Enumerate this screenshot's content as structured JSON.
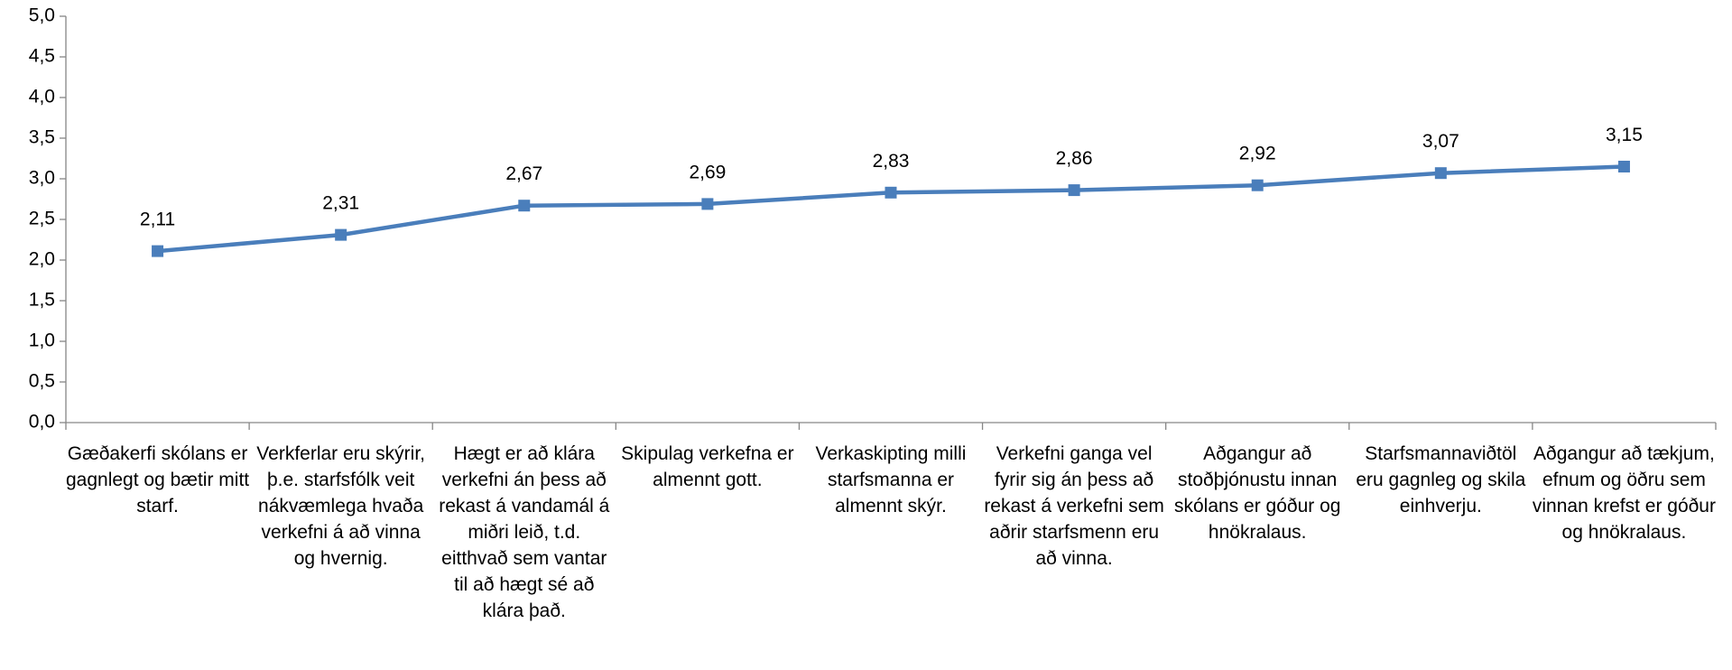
{
  "chart_data": {
    "type": "line",
    "categories": [
      "Gæðakerfi skólans er gagnlegt og bætir mitt starf.",
      "Verkferlar eru skýrir, þ.e. starfsfólk veit nákvæmlega hvaða verkefni á að vinna og hvernig.",
      "Hægt er að klára verkefni án þess að rekast á vandamál á miðri leið, t.d. eitthvað sem vantar til að hægt sé að klára það.",
      "Skipulag verkefna er almennt gott.",
      "Verkaskipting milli starfsmanna er almennt skýr.",
      "Verkefni ganga vel fyrir sig án þess að rekast á verkefni sem aðrir starfsmenn eru að vinna.",
      "Aðgangur að stoðþjónustu innan skólans er góður og hnökralaus.",
      "Starfsmannaviðtöl eru gagnleg og skila einhverju.",
      "Aðgangur að tækjum, efnum og öðru sem vinnan krefst er góður og hnökralaus."
    ],
    "values": [
      2.11,
      2.31,
      2.67,
      2.69,
      2.83,
      2.86,
      2.92,
      3.07,
      3.15
    ],
    "value_labels": [
      "2,11",
      "2,31",
      "2,67",
      "2,69",
      "2,83",
      "2,86",
      "2,92",
      "3,07",
      "3,15"
    ],
    "color": "#4a7ebb",
    "ylim": [
      0,
      5
    ],
    "yticks": [
      {
        "value": 0,
        "label": "0,0"
      },
      {
        "value": 0.5,
        "label": "0,5"
      },
      {
        "value": 1,
        "label": "1,0"
      },
      {
        "value": 1.5,
        "label": "1,5"
      },
      {
        "value": 2,
        "label": "2,0"
      },
      {
        "value": 2.5,
        "label": "2,5"
      },
      {
        "value": 3,
        "label": "3,0"
      },
      {
        "value": 3.5,
        "label": "3,5"
      },
      {
        "value": 4,
        "label": "4,0"
      },
      {
        "value": 4.5,
        "label": "4,5"
      },
      {
        "value": 5,
        "label": "5,0"
      }
    ],
    "grid": false
  }
}
